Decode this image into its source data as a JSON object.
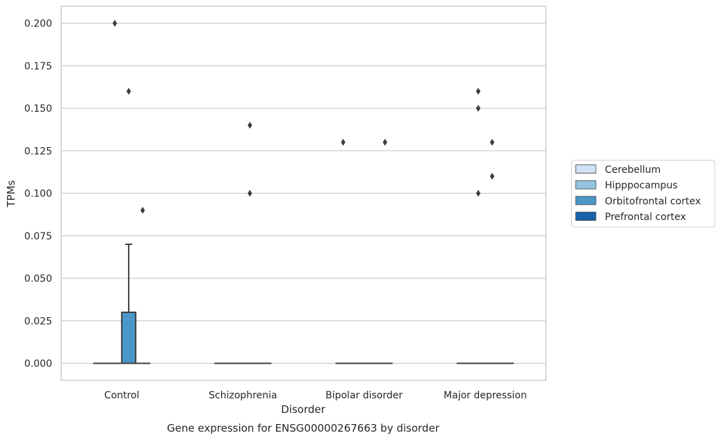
{
  "chart_data": {
    "type": "box",
    "xlabel": "Disorder",
    "ylabel": "TPMs",
    "caption": "Gene expression for ENSG00000267663 by disorder",
    "categories": [
      "Control",
      "Schizophrenia",
      "Bipolar disorder",
      "Major depression"
    ],
    "ylim": [
      -0.01,
      0.21
    ],
    "yticks": [
      "0.000",
      "0.025",
      "0.050",
      "0.075",
      "0.100",
      "0.125",
      "0.150",
      "0.175",
      "0.200"
    ],
    "grid": "horizontal",
    "legend_position": "right",
    "series": [
      {
        "name": "Cerebellum",
        "color": "#d0e1f2",
        "boxes": [
          {
            "category": "Control",
            "q1": 0.0,
            "median": 0.0,
            "q3": 0.0,
            "whisker_low": 0.0,
            "whisker_high": 0.0,
            "outliers": []
          },
          {
            "category": "Schizophrenia",
            "q1": 0.0,
            "median": 0.0,
            "q3": 0.0,
            "whisker_low": 0.0,
            "whisker_high": 0.0,
            "outliers": []
          },
          {
            "category": "Bipolar disorder",
            "q1": 0.0,
            "median": 0.0,
            "q3": 0.0,
            "whisker_low": 0.0,
            "whisker_high": 0.0,
            "outliers": [
              0.13
            ]
          },
          {
            "category": "Major depression",
            "q1": 0.0,
            "median": 0.0,
            "q3": 0.0,
            "whisker_low": 0.0,
            "whisker_high": 0.0,
            "outliers": []
          }
        ]
      },
      {
        "name": "Hipppocampus",
        "color": "#94c4df",
        "boxes": [
          {
            "category": "Control",
            "q1": 0.0,
            "median": 0.0,
            "q3": 0.0,
            "whisker_low": 0.0,
            "whisker_high": 0.0,
            "outliers": [
              0.2
            ]
          },
          {
            "category": "Schizophrenia",
            "q1": 0.0,
            "median": 0.0,
            "q3": 0.0,
            "whisker_low": 0.0,
            "whisker_high": 0.0,
            "outliers": []
          },
          {
            "category": "Bipolar disorder",
            "q1": 0.0,
            "median": 0.0,
            "q3": 0.0,
            "whisker_low": 0.0,
            "whisker_high": 0.0,
            "outliers": []
          },
          {
            "category": "Major depression",
            "q1": 0.0,
            "median": 0.0,
            "q3": 0.0,
            "whisker_low": 0.0,
            "whisker_high": 0.0,
            "outliers": [
              0.16,
              0.15,
              0.1
            ]
          }
        ]
      },
      {
        "name": "Orbitofrontal cortex",
        "color": "#4a98c9",
        "boxes": [
          {
            "category": "Control",
            "q1": 0.0,
            "median": 0.0,
            "q3": 0.03,
            "whisker_low": 0.0,
            "whisker_high": 0.07,
            "outliers": [
              0.16
            ]
          },
          {
            "category": "Schizophrenia",
            "q1": 0.0,
            "median": 0.0,
            "q3": 0.0,
            "whisker_low": 0.0,
            "whisker_high": 0.0,
            "outliers": [
              0.14,
              0.1
            ]
          },
          {
            "category": "Bipolar disorder",
            "q1": 0.0,
            "median": 0.0,
            "q3": 0.0,
            "whisker_low": 0.0,
            "whisker_high": 0.0,
            "outliers": []
          },
          {
            "category": "Major depression",
            "q1": 0.0,
            "median": 0.0,
            "q3": 0.0,
            "whisker_low": 0.0,
            "whisker_high": 0.0,
            "outliers": [
              0.13,
              0.11
            ]
          }
        ]
      },
      {
        "name": "Prefrontal cortex",
        "color": "#1764ab",
        "boxes": [
          {
            "category": "Control",
            "q1": 0.0,
            "median": 0.0,
            "q3": 0.0,
            "whisker_low": 0.0,
            "whisker_high": 0.0,
            "outliers": [
              0.09
            ]
          },
          {
            "category": "Schizophrenia",
            "q1": 0.0,
            "median": 0.0,
            "q3": 0.0,
            "whisker_low": 0.0,
            "whisker_high": 0.0,
            "outliers": []
          },
          {
            "category": "Bipolar disorder",
            "q1": 0.0,
            "median": 0.0,
            "q3": 0.0,
            "whisker_low": 0.0,
            "whisker_high": 0.0,
            "outliers": [
              0.13
            ]
          },
          {
            "category": "Major depression",
            "q1": 0.0,
            "median": 0.0,
            "q3": 0.0,
            "whisker_low": 0.0,
            "whisker_high": 0.0,
            "outliers": []
          }
        ]
      }
    ]
  }
}
